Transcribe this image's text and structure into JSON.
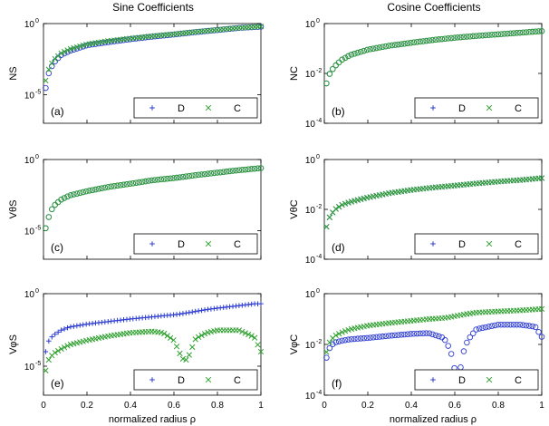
{
  "figure": {
    "col_titles": [
      "Sine Coefficients",
      "Cosine Coefficients"
    ],
    "xlabel": "normalized radius ρ",
    "x_ticks": [
      "0",
      "0.2",
      "0.4",
      "0.6",
      "0.8",
      "1"
    ],
    "legend": {
      "D": "D",
      "C": "C"
    },
    "colors": {
      "D": "#2d3cd2",
      "C": "#2ea02e"
    }
  },
  "chart_data": [
    {
      "id": "a",
      "type": "scatter",
      "panel_label": "(a)",
      "ylabel": "NS",
      "yscale": "log",
      "ylim": [
        1e-07,
        1
      ],
      "yticks": [
        {
          "v": 1,
          "mant": "10",
          "exp": "0"
        },
        {
          "v": 1e-05,
          "mant": "10",
          "exp": "-5"
        }
      ],
      "x": [
        0.01,
        0.02,
        0.03,
        0.05,
        0.08,
        0.12,
        0.2,
        0.3,
        0.4,
        0.5,
        0.6,
        0.7,
        0.8,
        0.9,
        1.0
      ],
      "series": [
        {
          "name": "D",
          "marker": "o",
          "values": [
            3e-05,
            0.0002,
            0.0006,
            0.002,
            0.006,
            0.012,
            0.03,
            0.05,
            0.08,
            0.12,
            0.17,
            0.25,
            0.35,
            0.5,
            0.6
          ]
        },
        {
          "name": "C",
          "marker": "x",
          "values": [
            0.0001,
            0.0004,
            0.001,
            0.003,
            0.008,
            0.016,
            0.035,
            0.06,
            0.09,
            0.13,
            0.18,
            0.26,
            0.36,
            0.5,
            0.62
          ]
        }
      ]
    },
    {
      "id": "b",
      "type": "scatter",
      "panel_label": "(b)",
      "ylabel": "NC",
      "yscale": "log",
      "ylim": [
        0.0001,
        1
      ],
      "yticks": [
        {
          "v": 1,
          "mant": "10",
          "exp": "0"
        },
        {
          "v": 0.01,
          "mant": "10",
          "exp": "-2"
        },
        {
          "v": 0.0001,
          "mant": "10",
          "exp": "-4"
        }
      ],
      "x": [
        0.01,
        0.02,
        0.03,
        0.05,
        0.08,
        0.12,
        0.2,
        0.3,
        0.4,
        0.5,
        0.6,
        0.7,
        0.8,
        0.9,
        1.0
      ],
      "series": [
        {
          "name": "D",
          "marker": "o",
          "values": [
            0.004,
            0.008,
            0.012,
            0.02,
            0.035,
            0.055,
            0.09,
            0.13,
            0.17,
            0.22,
            0.27,
            0.32,
            0.37,
            0.43,
            0.5
          ]
        },
        {
          "name": "C",
          "marker": "o",
          "values": [
            0.004,
            0.008,
            0.012,
            0.02,
            0.035,
            0.055,
            0.09,
            0.13,
            0.17,
            0.22,
            0.27,
            0.32,
            0.37,
            0.43,
            0.5
          ]
        }
      ]
    },
    {
      "id": "c",
      "type": "scatter",
      "panel_label": "(c)",
      "ylabel": "VθS",
      "yscale": "log",
      "ylim": [
        1e-07,
        1
      ],
      "yticks": [
        {
          "v": 1,
          "mant": "10",
          "exp": "0"
        },
        {
          "v": 1e-05,
          "mant": "10",
          "exp": "-5"
        }
      ],
      "x": [
        0.01,
        0.02,
        0.03,
        0.05,
        0.08,
        0.12,
        0.2,
        0.3,
        0.4,
        0.5,
        0.6,
        0.7,
        0.8,
        0.9,
        1.0
      ],
      "series": [
        {
          "name": "D",
          "marker": "o",
          "values": [
            1.5e-05,
            5e-05,
            0.0002,
            0.0006,
            0.0015,
            0.003,
            0.006,
            0.012,
            0.02,
            0.035,
            0.05,
            0.08,
            0.12,
            0.18,
            0.25
          ]
        },
        {
          "name": "C",
          "marker": "o",
          "values": [
            1.5e-05,
            5e-05,
            0.0002,
            0.0006,
            0.0015,
            0.003,
            0.006,
            0.012,
            0.02,
            0.035,
            0.05,
            0.08,
            0.12,
            0.18,
            0.25
          ]
        }
      ]
    },
    {
      "id": "d",
      "type": "scatter",
      "panel_label": "(d)",
      "ylabel": "VθC",
      "yscale": "log",
      "ylim": [
        0.0001,
        1
      ],
      "yticks": [
        {
          "v": 1,
          "mant": "10",
          "exp": "0"
        },
        {
          "v": 0.01,
          "mant": "10",
          "exp": "-2"
        },
        {
          "v": 0.0001,
          "mant": "10",
          "exp": "-4"
        }
      ],
      "x": [
        0.01,
        0.02,
        0.03,
        0.05,
        0.08,
        0.12,
        0.2,
        0.3,
        0.4,
        0.5,
        0.6,
        0.7,
        0.8,
        0.9,
        1.0
      ],
      "series": [
        {
          "name": "D",
          "marker": "x",
          "values": [
            0.002,
            0.004,
            0.006,
            0.01,
            0.015,
            0.02,
            0.03,
            0.045,
            0.06,
            0.075,
            0.09,
            0.11,
            0.13,
            0.15,
            0.18
          ]
        },
        {
          "name": "C",
          "marker": "x",
          "values": [
            0.002,
            0.004,
            0.006,
            0.01,
            0.015,
            0.02,
            0.03,
            0.045,
            0.06,
            0.075,
            0.09,
            0.11,
            0.13,
            0.15,
            0.18
          ]
        }
      ]
    },
    {
      "id": "e",
      "type": "scatter",
      "panel_label": "(e)",
      "ylabel": "VφS",
      "yscale": "log",
      "ylim": [
        1e-07,
        1
      ],
      "yticks": [
        {
          "v": 1,
          "mant": "10",
          "exp": "0"
        },
        {
          "v": 1e-05,
          "mant": "10",
          "exp": "-5"
        }
      ],
      "x": [
        0.01,
        0.02,
        0.03,
        0.05,
        0.08,
        0.12,
        0.2,
        0.3,
        0.4,
        0.5,
        0.55,
        0.6,
        0.63,
        0.65,
        0.67,
        0.7,
        0.75,
        0.8,
        0.9,
        0.97,
        1.0
      ],
      "series": [
        {
          "name": "D",
          "marker": "+",
          "values": [
            0.0001,
            0.0004,
            0.0008,
            0.0015,
            0.003,
            0.005,
            0.008,
            0.012,
            0.018,
            0.025,
            0.03,
            0.035,
            0.04,
            0.045,
            0.05,
            0.06,
            0.08,
            0.1,
            0.15,
            0.2,
            0.2
          ]
        },
        {
          "name": "C",
          "marker": "x",
          "values": [
            5e-06,
            2e-05,
            4e-05,
            8e-05,
            0.00015,
            0.0003,
            0.0006,
            0.0012,
            0.002,
            0.0025,
            0.002,
            0.0006,
            6e-05,
            2e-05,
            6e-05,
            0.0008,
            0.002,
            0.003,
            0.003,
            0.001,
            0.0001
          ]
        }
      ]
    },
    {
      "id": "f",
      "type": "scatter",
      "panel_label": "(f)",
      "ylabel": "VφC",
      "yscale": "log",
      "ylim": [
        0.0001,
        1
      ],
      "yticks": [
        {
          "v": 1,
          "mant": "10",
          "exp": "0"
        },
        {
          "v": 0.01,
          "mant": "10",
          "exp": "-2"
        },
        {
          "v": 0.0001,
          "mant": "10",
          "exp": "-4"
        }
      ],
      "x": [
        0.01,
        0.02,
        0.03,
        0.05,
        0.08,
        0.12,
        0.2,
        0.3,
        0.4,
        0.48,
        0.55,
        0.58,
        0.6,
        0.62,
        0.64,
        0.66,
        0.7,
        0.8,
        0.9,
        0.97,
        1.0
      ],
      "series": [
        {
          "name": "D",
          "marker": "o",
          "values": [
            0.003,
            0.006,
            0.009,
            0.012,
            0.014,
            0.016,
            0.018,
            0.022,
            0.026,
            0.028,
            0.018,
            0.006,
            0.001,
            0.0006,
            0.005,
            0.015,
            0.04,
            0.06,
            0.06,
            0.05,
            0.02
          ]
        },
        {
          "name": "C",
          "marker": "x",
          "values": [
            0.005,
            0.01,
            0.015,
            0.022,
            0.03,
            0.04,
            0.055,
            0.07,
            0.085,
            0.1,
            0.11,
            0.12,
            0.13,
            0.14,
            0.15,
            0.16,
            0.18,
            0.2,
            0.22,
            0.24,
            0.25
          ]
        }
      ]
    }
  ]
}
